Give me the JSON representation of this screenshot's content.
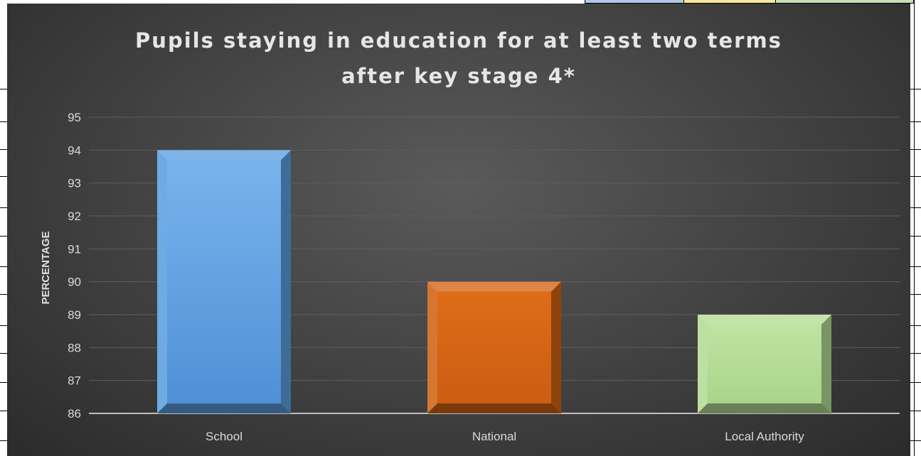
{
  "chart_data": {
    "type": "bar",
    "title_lines": [
      "Pupils staying in education for at least two terms",
      "after key stage 4*"
    ],
    "xlabel": "",
    "ylabel": "PERCENTAGE",
    "categories": [
      "School",
      "National",
      "Local Authority"
    ],
    "values": [
      94,
      90,
      89
    ],
    "ylim": [
      86,
      95
    ],
    "yticks": [
      86,
      87,
      88,
      89,
      90,
      91,
      92,
      93,
      94,
      95
    ],
    "grid": true,
    "legend": "none",
    "colors": {
      "School": "#5a9fe0",
      "National": "#d26314",
      "Local Authority": "#b3dc94"
    },
    "background": "#444444"
  }
}
